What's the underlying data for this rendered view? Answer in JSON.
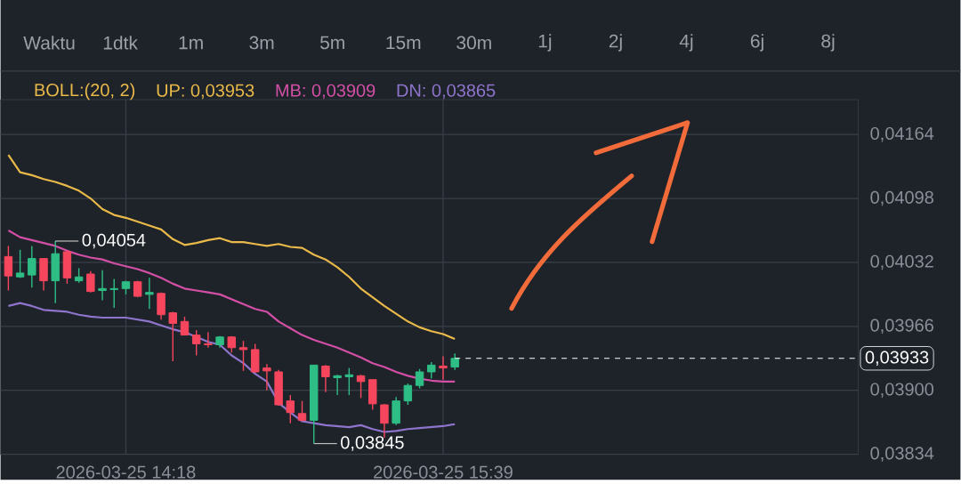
{
  "chart_data": {
    "type": "candlestick",
    "x": [
      "2026-03-25T13:48",
      "2026-03-25T13:51",
      "2026-03-25T13:54",
      "2026-03-25T13:57",
      "2026-03-25T14:00",
      "2026-03-25T14:03",
      "2026-03-25T14:06",
      "2026-03-25T14:09",
      "2026-03-25T14:12",
      "2026-03-25T14:15",
      "2026-03-25T14:18",
      "2026-03-25T14:21",
      "2026-03-25T14:24",
      "2026-03-25T14:27",
      "2026-03-25T14:30",
      "2026-03-25T14:33",
      "2026-03-25T14:36",
      "2026-03-25T14:39",
      "2026-03-25T14:42",
      "2026-03-25T14:45",
      "2026-03-25T14:48",
      "2026-03-25T14:51",
      "2026-03-25T14:54",
      "2026-03-25T14:57",
      "2026-03-25T15:00",
      "2026-03-25T15:03",
      "2026-03-25T15:06",
      "2026-03-25T15:09",
      "2026-03-25T15:12",
      "2026-03-25T15:15",
      "2026-03-25T15:18",
      "2026-03-25T15:21",
      "2026-03-25T15:24",
      "2026-03-25T15:27",
      "2026-03-25T15:30",
      "2026-03-25T15:33",
      "2026-03-25T15:36",
      "2026-03-25T15:39",
      "2026-03-25T15:42"
    ],
    "ohlc": [
      [
        0.04038,
        0.04049,
        0.04003,
        0.04018
      ],
      [
        0.04017,
        0.04045,
        0.04016,
        0.04021
      ],
      [
        0.04019,
        0.04049,
        0.04006,
        0.04036
      ],
      [
        0.04036,
        0.04036,
        0.04003,
        0.04013
      ],
      [
        0.04013,
        0.04054,
        0.0399,
        0.04041
      ],
      [
        0.04043,
        0.04044,
        0.0401,
        0.04016
      ],
      [
        0.04013,
        0.04026,
        0.04011,
        0.04017
      ],
      [
        0.0402,
        0.04023,
        0.04001,
        0.04002
      ],
      [
        0.04003,
        0.04024,
        0.03993,
        0.04005
      ],
      [
        0.04004,
        0.04015,
        0.03985,
        0.04005
      ],
      [
        0.04005,
        0.04013,
        0.03999,
        0.04012
      ],
      [
        0.04012,
        0.04013,
        0.03996,
        0.03997
      ],
      [
        0.03999,
        0.04016,
        0.03984,
        0.04001
      ],
      [
        0.04,
        0.04001,
        0.03973,
        0.03978
      ],
      [
        0.0398,
        0.03981,
        0.0393,
        0.03969
      ],
      [
        0.03971,
        0.03976,
        0.03957,
        0.03957
      ],
      [
        0.03957,
        0.03962,
        0.03936,
        0.03948
      ],
      [
        0.03948,
        0.0396,
        0.03944,
        0.03947
      ],
      [
        0.03947,
        0.03956,
        0.03944,
        0.03955
      ],
      [
        0.03955,
        0.03956,
        0.03939,
        0.03944
      ],
      [
        0.03944,
        0.03951,
        0.0392,
        0.03942
      ],
      [
        0.03942,
        0.03948,
        0.03918,
        0.03919
      ],
      [
        0.03923,
        0.03927,
        0.039,
        0.0392
      ],
      [
        0.03919,
        0.03921,
        0.03884,
        0.03885
      ],
      [
        0.03889,
        0.03895,
        0.03866,
        0.03877
      ],
      [
        0.03876,
        0.03889,
        0.03868,
        0.03869
      ],
      [
        0.03869,
        0.03926,
        0.03845,
        0.03926
      ],
      [
        0.03925,
        0.03926,
        0.03898,
        0.03914
      ],
      [
        0.03913,
        0.03916,
        0.03895,
        0.03915
      ],
      [
        0.03914,
        0.03923,
        0.03895,
        0.03916
      ],
      [
        0.03915,
        0.03916,
        0.03892,
        0.03909
      ],
      [
        0.03911,
        0.03911,
        0.0388,
        0.03886
      ],
      [
        0.03885,
        0.03886,
        0.03851,
        0.03866
      ],
      [
        0.03866,
        0.03893,
        0.03864,
        0.03889
      ],
      [
        0.03889,
        0.03907,
        0.03885,
        0.03905
      ],
      [
        0.03905,
        0.03922,
        0.03902,
        0.03919
      ],
      [
        0.03919,
        0.03929,
        0.03912,
        0.03926
      ],
      [
        0.03925,
        0.03935,
        0.03911,
        0.03923
      ],
      [
        0.03924,
        0.03938,
        0.03921,
        0.03933
      ]
    ],
    "series": [
      {
        "type": "line",
        "name": "UP: 0,03953",
        "color": "#e9b949",
        "values": [
          0.04143,
          0.04125,
          0.04122,
          0.04118,
          0.04115,
          0.04111,
          0.04106,
          0.04098,
          0.04087,
          0.04081,
          0.04078,
          0.04074,
          0.0407,
          0.04066,
          0.04056,
          0.0405,
          0.04052,
          0.04055,
          0.04057,
          0.04053,
          0.04053,
          0.04051,
          0.04049,
          0.04051,
          0.04048,
          0.04047,
          0.0404,
          0.04035,
          0.04027,
          0.04017,
          0.04005,
          0.03996,
          0.03987,
          0.03979,
          0.03971,
          0.03965,
          0.03961,
          0.03958,
          0.03953
        ]
      },
      {
        "type": "line",
        "name": "MB: 0,03909",
        "color": "#d34fa6",
        "values": [
          0.04065,
          0.04058,
          0.04055,
          0.04052,
          0.04049,
          0.04044,
          0.0404,
          0.04037,
          0.04035,
          0.04031,
          0.04028,
          0.04025,
          0.04021,
          0.04016,
          0.0401,
          0.04005,
          0.04003,
          0.04001,
          0.03999,
          0.03994,
          0.03989,
          0.03984,
          0.03981,
          0.03971,
          0.03964,
          0.03957,
          0.03952,
          0.03948,
          0.03944,
          0.03939,
          0.03934,
          0.03928,
          0.03924,
          0.03919,
          0.03915,
          0.03912,
          0.0391,
          0.03909,
          0.03909
        ]
      },
      {
        "type": "line",
        "name": "DN: 0,03865",
        "color": "#8e74cc",
        "values": [
          0.03987,
          0.0399,
          0.03987,
          0.03983,
          0.03982,
          0.03981,
          0.03978,
          0.03976,
          0.03975,
          0.03975,
          0.03975,
          0.03973,
          0.03971,
          0.03967,
          0.03963,
          0.0396,
          0.03955,
          0.0395,
          0.03947,
          0.03936,
          0.03928,
          0.03917,
          0.03909,
          0.03887,
          0.03877,
          0.03868,
          0.03866,
          0.03864,
          0.03863,
          0.03862,
          0.03864,
          0.0386,
          0.03857,
          0.03858,
          0.0386,
          0.03861,
          0.03862,
          0.03863,
          0.03865
        ]
      }
    ],
    "xlim": [
      "2026-03-25T13:46",
      "2026-03-25T17:25"
    ],
    "xticks": [
      {
        "value": "2026-03-25T14:18",
        "label": "2026-03-25 14:18"
      },
      {
        "value": "2026-03-25T15:39",
        "label": "2026-03-25 15:39"
      }
    ],
    "ylim": [
      0.03834,
      0.042
    ],
    "yticks": [
      {
        "value": 0.03834,
        "label": "0,03834"
      },
      {
        "value": 0.039,
        "label": "0,03900"
      },
      {
        "value": 0.03966,
        "label": "0,03966"
      },
      {
        "value": 0.04032,
        "label": "0,04032"
      },
      {
        "value": 0.04098,
        "label": "0,04098"
      },
      {
        "value": 0.04164,
        "label": "0,04164"
      }
    ],
    "grid": true,
    "legend": "top",
    "ref_lines": [
      {
        "axis": "y",
        "value": 0.03933,
        "label": "0,03933",
        "color": "#ffffff",
        "line_style": "dashed"
      }
    ],
    "annotations": [
      "Waktu",
      "1dtk",
      "1m",
      "3m",
      "5m",
      "15m",
      "30m",
      "1j",
      "2j",
      "4j",
      "6j",
      "8j",
      "BOLL:(20, 2)",
      {
        "text": "0,04054",
        "x": "2026-03-25T14:00",
        "y": 0.04054
      },
      {
        "text": "0,03845",
        "x": "2026-03-25T15:06",
        "y": 0.03845
      }
    ]
  }
}
